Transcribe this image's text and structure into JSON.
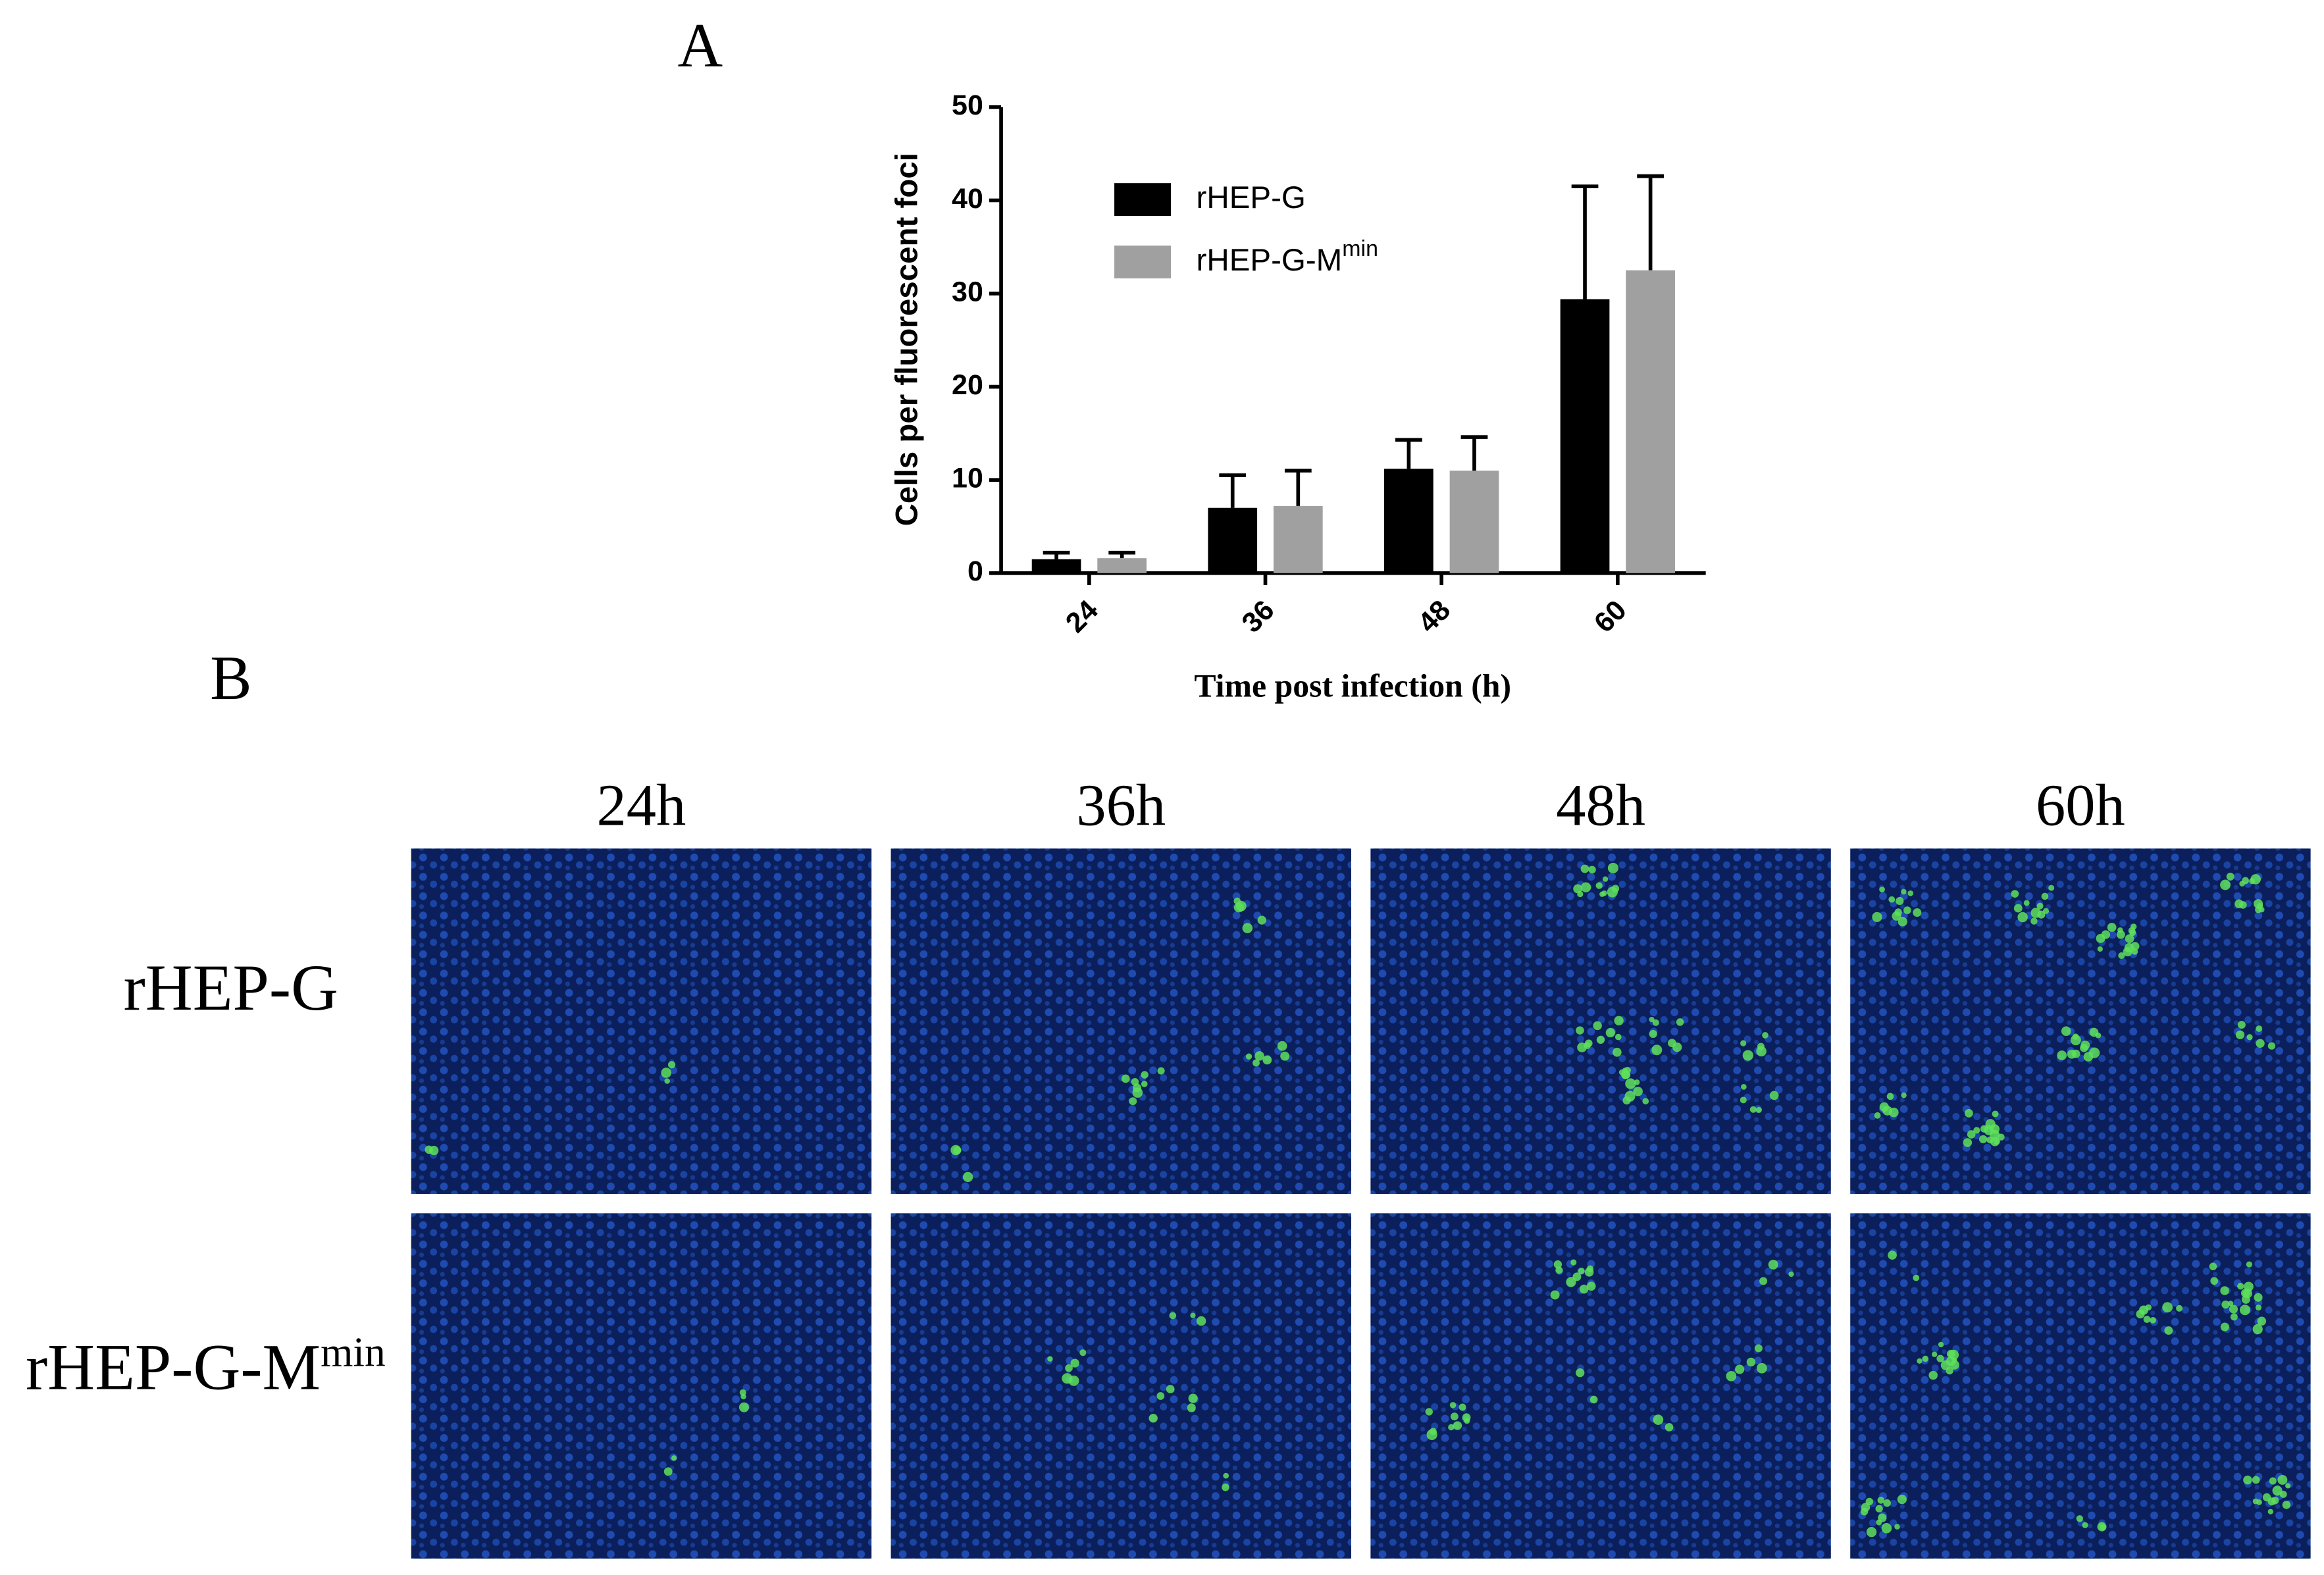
{
  "chart_data": {
    "type": "bar",
    "panel_label": "A",
    "y_label": "Cells per fluorescent foci",
    "x_label": "Time post infection (h)",
    "categories": [
      "24",
      "36",
      "48",
      "60"
    ],
    "series": [
      {
        "name": "rHEP-G",
        "color": "#000000",
        "values": [
          1.5,
          7,
          11.2,
          29.4
        ],
        "errors": [
          0.7,
          3.5,
          3.1,
          12.1
        ]
      },
      {
        "name": "rHEP-G-M",
        "name_superscript": "min",
        "color": "#a0a0a0",
        "values": [
          1.6,
          7.2,
          11,
          32.5
        ],
        "errors": [
          0.6,
          3.8,
          3.6,
          10.1
        ]
      }
    ],
    "ylim": [
      0,
      50
    ],
    "yticks": [
      0,
      10,
      20,
      30,
      40,
      50
    ],
    "grid": false
  },
  "panel_b": {
    "panel_label": "B",
    "columns": [
      "24h",
      "36h",
      "48h",
      "60h"
    ],
    "rows": [
      {
        "label": "rHEP-G"
      },
      {
        "label": "rHEP-G-M",
        "superscript": "min"
      }
    ]
  }
}
